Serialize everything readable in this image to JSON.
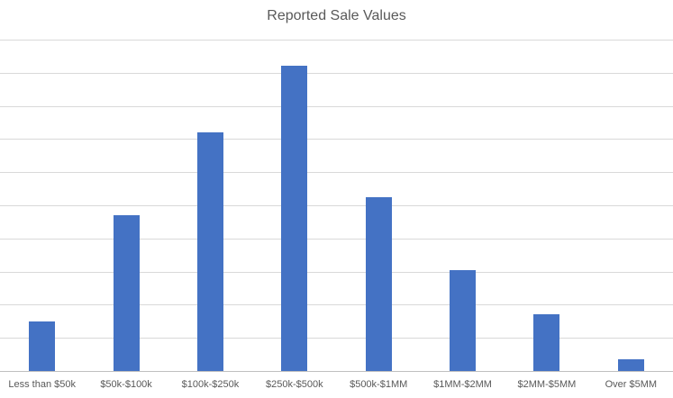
{
  "chart_data": {
    "type": "bar",
    "title": "Reported Sale Values",
    "categories": [
      "Less than $50k",
      "$50k-$100k",
      "$100k-$250k",
      "$250k-$500k",
      "$500k-$1MM",
      "$1MM-$2MM",
      "$2MM-$5MM",
      "Over $5MM"
    ],
    "values": [
      1.5,
      4.7,
      7.2,
      9.2,
      5.25,
      3.05,
      1.7,
      0.35
    ],
    "xlabel": "",
    "ylabel": "",
    "ylim": [
      0,
      10
    ],
    "gridline_interval": 1,
    "grid": true,
    "y_axis_labels_visible": false,
    "legend_position": "none",
    "colors": {
      "bar_fill": "#4472C4",
      "gridline": "#D9D9D9",
      "axis_line": "#BFBFBF",
      "title_text": "#595959",
      "label_text": "#595959",
      "background": "#FFFFFF"
    }
  }
}
